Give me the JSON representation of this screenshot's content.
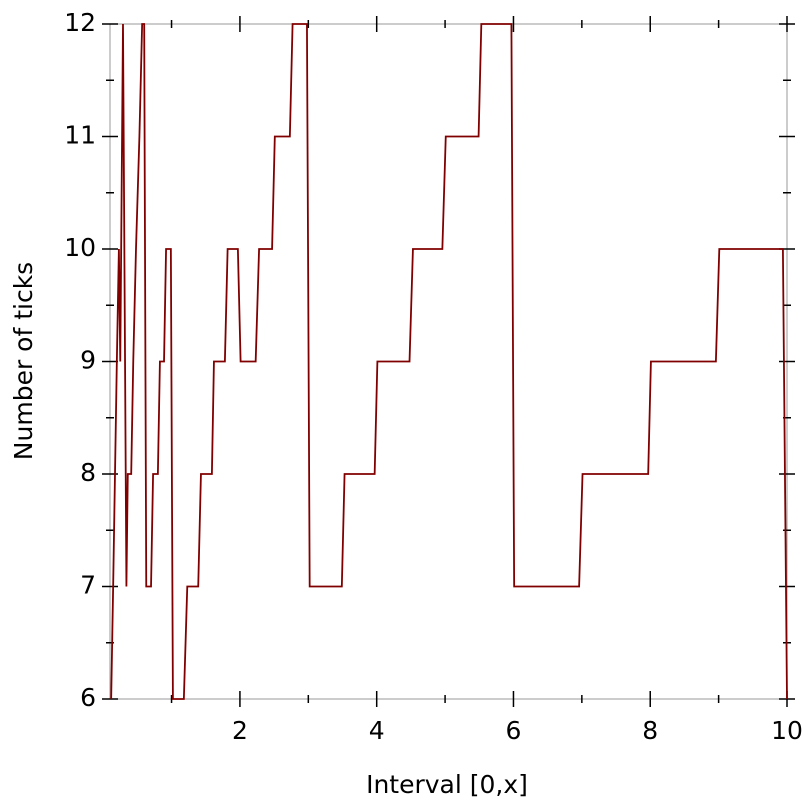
{
  "chart_data": {
    "type": "line",
    "x_label": "Interval [0,x]",
    "y_label": "Number of ticks",
    "x": [
      0.117,
      0.146,
      0.2,
      0.23,
      0.25,
      0.29,
      0.34,
      0.36,
      0.41,
      0.44,
      0.48,
      0.53,
      0.57,
      0.6,
      0.63,
      0.7,
      0.73,
      0.8,
      0.83,
      0.89,
      0.92,
      0.99,
      1.02,
      1.18,
      1.23,
      1.39,
      1.43,
      1.59,
      1.62,
      1.78,
      1.82,
      1.97,
      2.01,
      2.23,
      2.28,
      2.47,
      2.51,
      2.73,
      2.77,
      2.98,
      3.02,
      3.49,
      3.53,
      3.97,
      4.01,
      4.48,
      4.53,
      4.96,
      5.01,
      5.49,
      5.53,
      5.97,
      6.01,
      6.96,
      7.01,
      7.97,
      8.01,
      8.96,
      9.01,
      9.94,
      10.0
    ],
    "values": [
      6,
      7,
      9,
      10,
      9,
      12,
      7,
      8,
      8,
      9,
      10,
      11,
      12,
      12,
      7,
      7,
      8,
      8,
      9,
      9,
      10,
      10,
      6,
      6,
      7,
      7,
      8,
      8,
      9,
      9,
      10,
      10,
      9,
      9,
      10,
      10,
      11,
      11,
      12,
      12,
      7,
      7,
      8,
      8,
      9,
      9,
      10,
      10,
      11,
      11,
      12,
      12,
      7,
      7,
      8,
      8,
      9,
      9,
      10,
      10,
      6
    ],
    "color": "#800000",
    "xlim": [
      0.1,
      10
    ],
    "ylim": [
      6,
      12
    ],
    "xticks": [
      2,
      4,
      6,
      8,
      10
    ],
    "yticks": [
      6,
      7,
      8,
      9,
      10,
      11,
      12
    ],
    "xminorticks": [
      1,
      3,
      5,
      7,
      9
    ],
    "yminorticks": [
      6.5,
      7.5,
      8.5,
      9.5,
      10.5,
      11.5
    ]
  }
}
